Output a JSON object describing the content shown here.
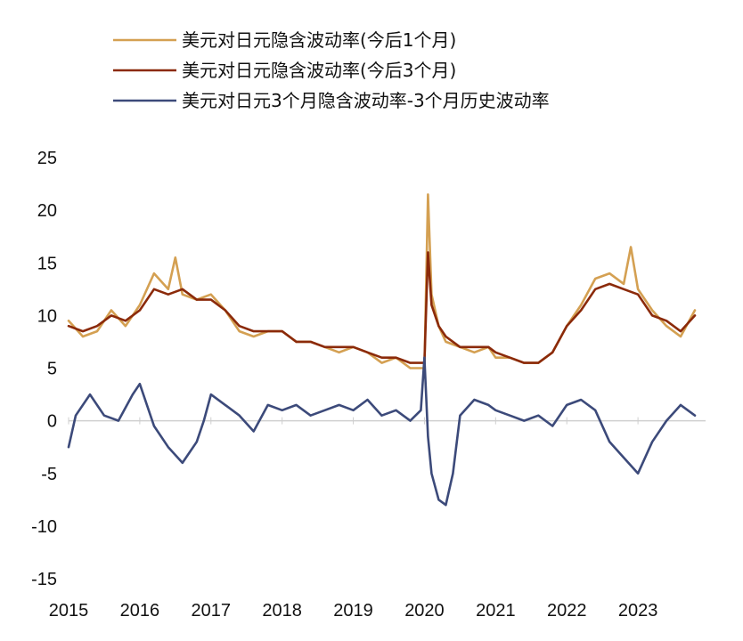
{
  "chart_data": {
    "type": "line",
    "title": "",
    "xlabel": "",
    "ylabel": "",
    "ylim": [
      -15,
      25
    ],
    "y_ticks": [
      "25",
      "20",
      "15",
      "10",
      "5",
      "0",
      "-5",
      "-10",
      "-15"
    ],
    "x_ticks": [
      "2015",
      "2016",
      "2017",
      "2018",
      "2019",
      "2020",
      "2021",
      "2022",
      "2023"
    ],
    "grid": false,
    "legend_position": "top-left",
    "series": [
      {
        "name": "美元对日元隐含波动率(今后1个月)",
        "color": "#D4A052",
        "x": [
          2015.0,
          2015.2,
          2015.4,
          2015.6,
          2015.8,
          2016.0,
          2016.2,
          2016.4,
          2016.5,
          2016.6,
          2016.8,
          2017.0,
          2017.2,
          2017.4,
          2017.6,
          2017.8,
          2018.0,
          2018.2,
          2018.4,
          2018.6,
          2018.8,
          2019.0,
          2019.2,
          2019.4,
          2019.6,
          2019.8,
          2020.0,
          2020.05,
          2020.1,
          2020.2,
          2020.3,
          2020.5,
          2020.7,
          2020.9,
          2021.0,
          2021.2,
          2021.4,
          2021.6,
          2021.8,
          2022.0,
          2022.2,
          2022.4,
          2022.6,
          2022.8,
          2022.9,
          2023.0,
          2023.2,
          2023.4,
          2023.6,
          2023.8
        ],
        "values": [
          9.5,
          8.0,
          8.5,
          10.5,
          9.0,
          11.0,
          14.0,
          12.5,
          15.5,
          12.0,
          11.5,
          12.0,
          10.5,
          8.5,
          8.0,
          8.5,
          8.5,
          7.5,
          7.5,
          7.0,
          6.5,
          7.0,
          6.5,
          5.5,
          6.0,
          5.0,
          5.0,
          21.5,
          12.0,
          9.0,
          7.5,
          7.0,
          6.5,
          7.0,
          6.0,
          6.0,
          5.5,
          5.5,
          6.5,
          9.0,
          11.0,
          13.5,
          14.0,
          13.0,
          16.5,
          12.5,
          10.5,
          9.0,
          8.0,
          10.5
        ]
      },
      {
        "name": "美元对日元隐含波动率(今后3个月)",
        "color": "#8B2A0A",
        "x": [
          2015.0,
          2015.2,
          2015.4,
          2015.6,
          2015.8,
          2016.0,
          2016.2,
          2016.4,
          2016.6,
          2016.8,
          2017.0,
          2017.2,
          2017.4,
          2017.6,
          2017.8,
          2018.0,
          2018.2,
          2018.4,
          2018.6,
          2018.8,
          2019.0,
          2019.2,
          2019.4,
          2019.6,
          2019.8,
          2020.0,
          2020.05,
          2020.1,
          2020.2,
          2020.3,
          2020.5,
          2020.7,
          2020.9,
          2021.0,
          2021.2,
          2021.4,
          2021.6,
          2021.8,
          2022.0,
          2022.2,
          2022.4,
          2022.6,
          2022.8,
          2023.0,
          2023.2,
          2023.4,
          2023.6,
          2023.8
        ],
        "values": [
          9.0,
          8.5,
          9.0,
          10.0,
          9.5,
          10.5,
          12.5,
          12.0,
          12.5,
          11.5,
          11.5,
          10.5,
          9.0,
          8.5,
          8.5,
          8.5,
          7.5,
          7.5,
          7.0,
          7.0,
          7.0,
          6.5,
          6.0,
          6.0,
          5.5,
          5.5,
          16.0,
          11.0,
          9.0,
          8.0,
          7.0,
          7.0,
          7.0,
          6.5,
          6.0,
          5.5,
          5.5,
          6.5,
          9.0,
          10.5,
          12.5,
          13.0,
          12.5,
          12.0,
          10.0,
          9.5,
          8.5,
          10.0
        ]
      },
      {
        "name": "美元对日元3个月隐含波动率-3个月历史波动率",
        "color": "#3C4A7A",
        "x": [
          2015.0,
          2015.1,
          2015.3,
          2015.5,
          2015.7,
          2015.9,
          2016.0,
          2016.2,
          2016.4,
          2016.6,
          2016.8,
          2016.9,
          2017.0,
          2017.2,
          2017.4,
          2017.6,
          2017.8,
          2018.0,
          2018.2,
          2018.4,
          2018.6,
          2018.8,
          2019.0,
          2019.2,
          2019.4,
          2019.6,
          2019.8,
          2019.95,
          2020.0,
          2020.05,
          2020.1,
          2020.2,
          2020.3,
          2020.4,
          2020.5,
          2020.7,
          2020.9,
          2021.0,
          2021.2,
          2021.4,
          2021.6,
          2021.8,
          2022.0,
          2022.2,
          2022.4,
          2022.6,
          2022.8,
          2023.0,
          2023.2,
          2023.4,
          2023.6,
          2023.8
        ],
        "values": [
          -2.5,
          0.5,
          2.5,
          0.5,
          0.0,
          2.5,
          3.5,
          -0.5,
          -2.5,
          -4.0,
          -2.0,
          0.0,
          2.5,
          1.5,
          0.5,
          -1.0,
          1.5,
          1.0,
          1.5,
          0.5,
          1.0,
          1.5,
          1.0,
          2.0,
          0.5,
          1.0,
          0.0,
          1.0,
          6.0,
          -1.5,
          -5.0,
          -7.5,
          -8.0,
          -5.0,
          0.5,
          2.0,
          1.5,
          1.0,
          0.5,
          0.0,
          0.5,
          -0.5,
          1.5,
          2.0,
          1.0,
          -2.0,
          -3.5,
          -5.0,
          -2.0,
          0.0,
          1.5,
          0.5
        ]
      }
    ]
  }
}
